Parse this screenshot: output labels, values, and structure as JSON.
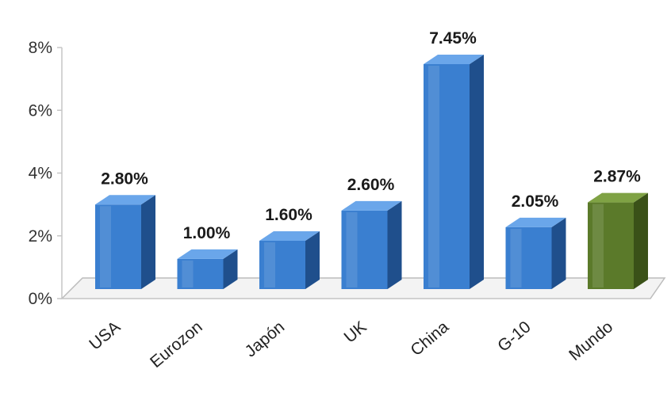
{
  "chart_data": {
    "type": "bar",
    "categories": [
      "USA",
      "Eurozon",
      "Japón",
      "UK",
      "China",
      "G-10",
      "Mundo"
    ],
    "values": [
      2.8,
      1.0,
      1.6,
      2.6,
      7.45,
      2.05,
      2.87
    ],
    "value_labels": [
      "2.80%",
      "1.00%",
      "1.60%",
      "2.60%",
      "7.45%",
      "2.05%",
      "2.87%"
    ],
    "y_ticks": [
      0,
      2,
      4,
      6,
      8
    ],
    "y_tick_labels": [
      "0%",
      "2%",
      "4%",
      "6%",
      "8%"
    ],
    "ylim": [
      0,
      8
    ],
    "grid": false,
    "legend": "none",
    "style": "3d-column",
    "colors": {
      "default_front": "#3a7fd0",
      "default_side": "#1f4f8c",
      "default_top": "#6aa6ea",
      "highlight_front": "#5b7a2a",
      "highlight_side": "#3a5118",
      "highlight_top": "#7fa244"
    },
    "highlight_index": 6
  }
}
